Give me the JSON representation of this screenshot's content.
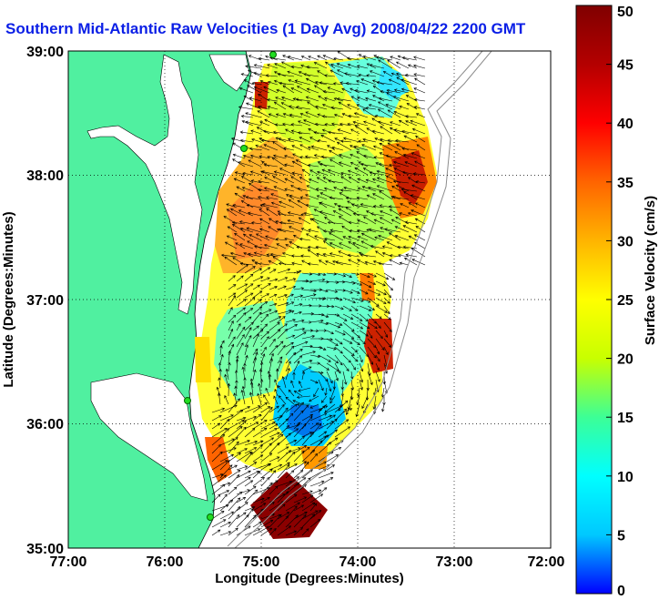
{
  "title": "Southern Mid-Atlantic Raw Velocities (1 Day Avg) 2008/04/22 2200 GMT",
  "xaxis": {
    "label": "Longitude (Degrees:Minutes)",
    "ticks": [
      "77:00",
      "76:00",
      "75:00",
      "74:00",
      "73:00",
      "72:00"
    ]
  },
  "yaxis": {
    "label": "Latitude (Degrees:Minutes)",
    "ticks": [
      "39:00",
      "38:00",
      "37:00",
      "36:00",
      "35:00"
    ]
  },
  "colorbar": {
    "label": "Surface Velocity (cm/s)",
    "ticks": [
      "50",
      "45",
      "40",
      "35",
      "30",
      "25",
      "20",
      "15",
      "10",
      "5",
      "0"
    ],
    "range": [
      0,
      50
    ],
    "colors": [
      "#0000ff",
      "#00c8ff",
      "#00ffff",
      "#3cff96",
      "#c8ff00",
      "#ffff00",
      "#ffb400",
      "#ff6400",
      "#ff0000",
      "#b40000",
      "#800000"
    ]
  },
  "map": {
    "lon_range": [
      -77,
      -72
    ],
    "lat_range": [
      35,
      39
    ],
    "grid": true,
    "land_color": "#50f0a0",
    "water_color": "#ffffff",
    "features": [
      "coastline",
      "velocity-field",
      "velocity-vectors",
      "hf-radar-stations",
      "bathymetry-contours"
    ]
  }
}
